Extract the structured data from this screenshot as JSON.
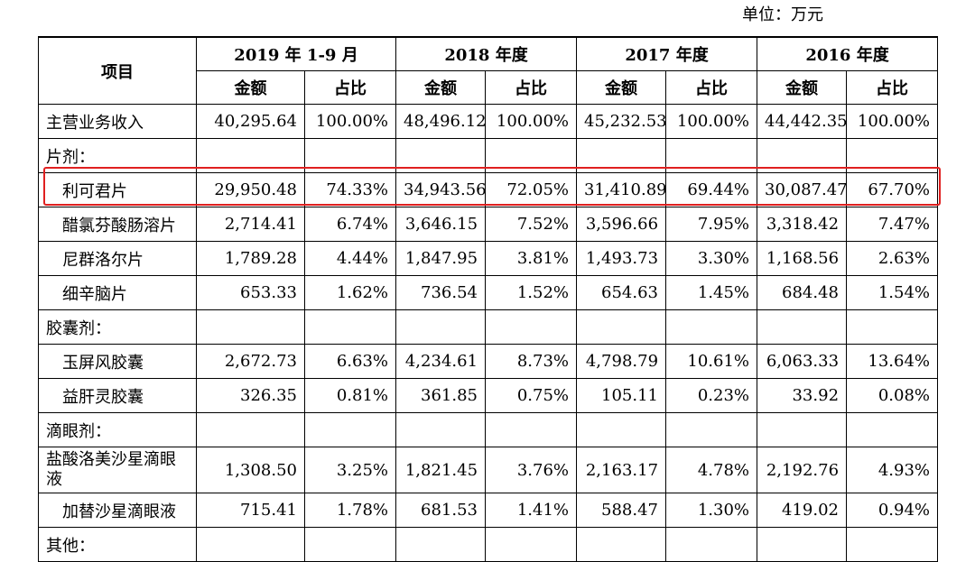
{
  "unit_label": "单位：万元",
  "headers": {
    "item": "项目",
    "periods": [
      "2019 年 1-9 月",
      "2018 年度",
      "2017 年度",
      "2016 年度"
    ],
    "amount": "金额",
    "ratio": "占比"
  },
  "rows": [
    {
      "label": "主营业务收入",
      "type": "data",
      "values": [
        "40,295.64",
        "100.00%",
        "48,496.12",
        "100.00%",
        "45,232.53",
        "100.00%",
        "44,442.35",
        "100.00%"
      ]
    },
    {
      "label": "片剂：",
      "type": "category"
    },
    {
      "label": "利可君片",
      "type": "sub",
      "highlight": true,
      "values": [
        "29,950.48",
        "74.33%",
        "34,943.56",
        "72.05%",
        "31,410.89",
        "69.44%",
        "30,087.47",
        "67.70%"
      ]
    },
    {
      "label": "醋氯芬酸肠溶片",
      "type": "sub",
      "values": [
        "2,714.41",
        "6.74%",
        "3,646.15",
        "7.52%",
        "3,596.66",
        "7.95%",
        "3,318.42",
        "7.47%"
      ]
    },
    {
      "label": "尼群洛尔片",
      "type": "sub",
      "values": [
        "1,789.28",
        "4.44%",
        "1,847.95",
        "3.81%",
        "1,493.73",
        "3.30%",
        "1,168.56",
        "2.63%"
      ]
    },
    {
      "label": "细辛脑片",
      "type": "sub",
      "values": [
        "653.33",
        "1.62%",
        "736.54",
        "1.52%",
        "654.63",
        "1.45%",
        "684.48",
        "1.54%"
      ]
    },
    {
      "label": "胶囊剂：",
      "type": "category"
    },
    {
      "label": "玉屏风胶囊",
      "type": "sub",
      "values": [
        "2,672.73",
        "6.63%",
        "4,234.61",
        "8.73%",
        "4,798.79",
        "10.61%",
        "6,063.33",
        "13.64%"
      ]
    },
    {
      "label": "益肝灵胶囊",
      "type": "sub",
      "values": [
        "326.35",
        "0.81%",
        "361.85",
        "0.75%",
        "105.11",
        "0.23%",
        "33.92",
        "0.08%"
      ]
    },
    {
      "label": "滴眼剂：",
      "type": "category"
    },
    {
      "label": "盐酸洛美沙星滴眼液",
      "type": "sub-wrap",
      "values": [
        "1,308.50",
        "3.25%",
        "1,821.45",
        "3.76%",
        "2,163.17",
        "4.78%",
        "2,192.76",
        "4.93%"
      ]
    },
    {
      "label": "加替沙星滴眼液",
      "type": "sub",
      "values": [
        "715.41",
        "1.78%",
        "681.53",
        "1.41%",
        "588.47",
        "1.30%",
        "419.02",
        "0.94%"
      ]
    },
    {
      "label": "其他：",
      "type": "category"
    }
  ],
  "highlight_color": "#e02020"
}
